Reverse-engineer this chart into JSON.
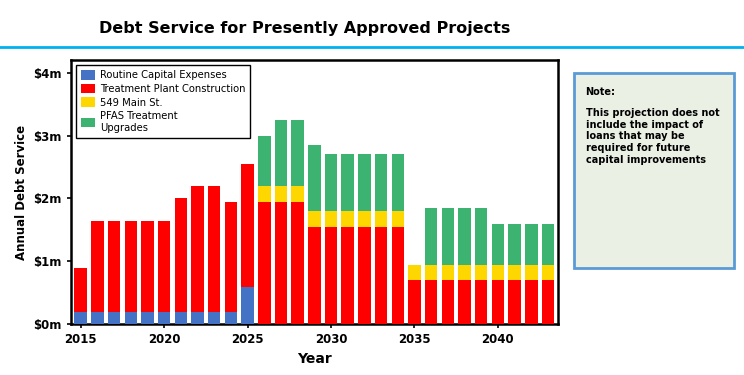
{
  "title": "Debt Service for Presently Approved Projects",
  "xlabel": "Year",
  "ylabel": "Annual Debt Service",
  "years": [
    2015,
    2016,
    2017,
    2018,
    2019,
    2020,
    2021,
    2022,
    2023,
    2024,
    2025,
    2026,
    2027,
    2028,
    2029,
    2030,
    2031,
    2032,
    2033,
    2034,
    2035,
    2036,
    2037,
    2038,
    2039,
    2040,
    2041,
    2042,
    2043
  ],
  "routine_capital": [
    0.2,
    0.2,
    0.2,
    0.2,
    0.2,
    0.2,
    0.2,
    0.2,
    0.2,
    0.2,
    0.6,
    0.0,
    0.0,
    0.0,
    0.0,
    0.0,
    0.0,
    0.0,
    0.0,
    0.0,
    0.0,
    0.0,
    0.0,
    0.0,
    0.0,
    0.0,
    0.0,
    0.0,
    0.0
  ],
  "treatment_plant": [
    0.7,
    1.45,
    1.45,
    1.45,
    1.45,
    1.45,
    1.8,
    2.0,
    2.0,
    1.75,
    1.95,
    1.95,
    1.95,
    1.95,
    1.55,
    1.55,
    1.55,
    1.55,
    1.55,
    1.55,
    0.7,
    0.7,
    0.7,
    0.7,
    0.7,
    0.7,
    0.7,
    0.7,
    0.7
  ],
  "main_st": [
    0.0,
    0.0,
    0.0,
    0.0,
    0.0,
    0.0,
    0.0,
    0.0,
    0.0,
    0.0,
    0.0,
    0.25,
    0.25,
    0.25,
    0.25,
    0.25,
    0.25,
    0.25,
    0.25,
    0.25,
    0.25,
    0.25,
    0.25,
    0.25,
    0.25,
    0.25,
    0.25,
    0.25,
    0.25
  ],
  "pfas": [
    0.0,
    0.0,
    0.0,
    0.0,
    0.0,
    0.0,
    0.0,
    0.0,
    0.0,
    0.0,
    0.0,
    0.8,
    1.05,
    1.05,
    1.05,
    0.9,
    0.9,
    0.9,
    0.9,
    0.9,
    0.0,
    0.9,
    0.9,
    0.9,
    0.9,
    0.65,
    0.65,
    0.65,
    0.65
  ],
  "color_routine": "#4472C4",
  "color_treatment": "#FF0000",
  "color_main_st": "#FFD700",
  "color_pfas": "#3CB371",
  "legend_labels": [
    "Routine Capital Expenses",
    "Treatment Plant Construction",
    "549 Main St.",
    "PFAS Treatment\nUpgrades"
  ],
  "yticks": [
    0,
    1000000,
    2000000,
    3000000,
    4000000
  ],
  "ytick_labels": [
    "$0m",
    "$1m",
    "$2m",
    "$3m",
    "$4m"
  ],
  "ylim": [
    0,
    4200000
  ],
  "note_title": "Note:",
  "note_body": "This projection does not\ninclude the impact of\nloans that may be\nrequired for future\ncapital improvements",
  "note_bg": "#EAF0E4",
  "note_border": "#5B9BD5",
  "title_color": "#000000",
  "top_line_color": "#00B0F0",
  "bar_width": 0.75,
  "fig_width": 7.44,
  "fig_height": 3.75,
  "fig_dpi": 100
}
